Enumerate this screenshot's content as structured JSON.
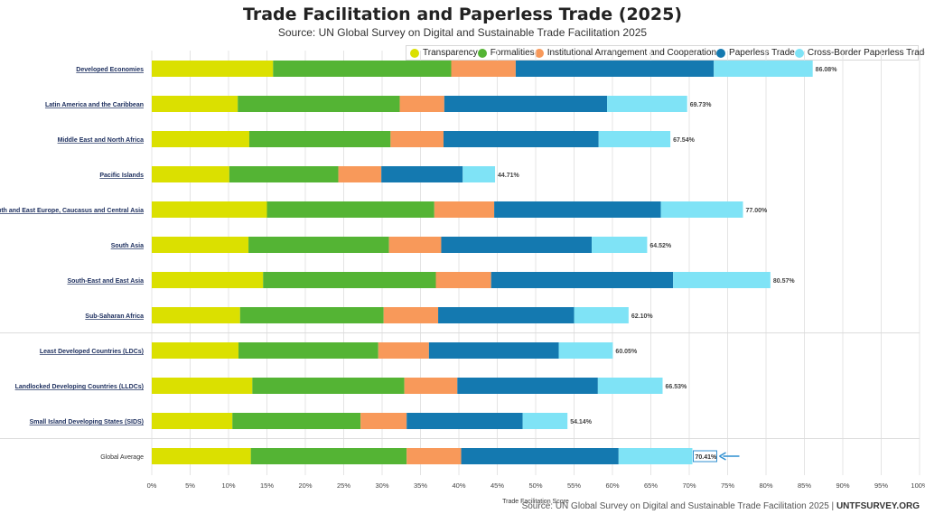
{
  "page": {
    "title": "Trade Facilitation and Paperless Trade (2025)",
    "subtitle": "Source: UN Global Survey on Digital and Sustainable Trade Facilitation 2025",
    "footer_source": "Source: UN Global Survey on Digital and Sustainable Trade Facilitation 2025 | ",
    "footer_site": "UNTFSURVEY.ORG"
  },
  "chart_data": {
    "type": "bar",
    "orientation": "horizontal",
    "stacked": true,
    "title": "Trade Facilitation and Paperless Trade (2025)",
    "subtitle": "Source: UN Global Survey on Digital and Sustainable Trade Facilitation 2025",
    "xlabel": "Trade Facilitation Score",
    "ylabel": "",
    "xlim": [
      0,
      100
    ],
    "x_ticks": [
      "0%",
      "5%",
      "10%",
      "15%",
      "20%",
      "25%",
      "30%",
      "35%",
      "40%",
      "45%",
      "50%",
      "55%",
      "60%",
      "65%",
      "70%",
      "75%",
      "80%",
      "85%",
      "90%",
      "95%",
      "100%"
    ],
    "grid": true,
    "legend_position": "top-right",
    "categories": [
      "Developed Economies",
      "Latin America and the Caribbean",
      "Middle East and North Africa",
      "Pacific Islands",
      "South and East Europe, Caucasus and Central Asia",
      "South Asia",
      "South-East and East Asia",
      "Sub-Saharan Africa",
      "Least Developed Countries (LDCs)",
      "Landlocked Developing Countries (LLDCs)",
      "Small Island Developing States (SIDS)",
      "Global Average"
    ],
    "highlighted_category": "Global Average",
    "series": [
      {
        "name": "Transparency",
        "color": "#dbe000",
        "values": [
          15.8,
          11.2,
          12.7,
          10.1,
          15.0,
          12.6,
          14.5,
          11.5,
          11.3,
          13.1,
          10.5,
          12.9
        ]
      },
      {
        "name": "Formalities",
        "color": "#54b434",
        "values": [
          23.2,
          21.1,
          18.4,
          14.2,
          21.8,
          18.3,
          22.5,
          18.7,
          18.2,
          19.8,
          16.7,
          20.3
        ]
      },
      {
        "name": "Institutional Arrangement and Cooperation",
        "color": "#f8995a",
        "values": [
          8.4,
          5.8,
          6.9,
          5.6,
          7.8,
          6.8,
          7.2,
          7.1,
          6.6,
          6.9,
          6.0,
          7.1
        ]
      },
      {
        "name": "Paperless Trade",
        "color": "#1479b0",
        "values": [
          25.8,
          21.2,
          20.2,
          10.6,
          21.7,
          19.6,
          23.7,
          17.7,
          16.9,
          18.3,
          15.1,
          20.5
        ]
      },
      {
        "name": "Cross-Border Paperless Trade",
        "color": "#7fe3f6",
        "values": [
          12.88,
          10.43,
          9.34,
          4.21,
          10.7,
          7.22,
          12.67,
          7.1,
          7.05,
          8.43,
          5.84,
          9.61
        ]
      }
    ],
    "totals": [
      86.08,
      69.73,
      67.54,
      44.71,
      77.0,
      64.52,
      80.57,
      62.1,
      60.05,
      66.53,
      54.14,
      70.41
    ],
    "total_labels": [
      "86.08%",
      "69.73%",
      "67.54%",
      "44.71%",
      "77.00%",
      "64.52%",
      "80.57%",
      "62.10%",
      "60.05%",
      "66.53%",
      "54.14%",
      "70.41%"
    ],
    "colors": {
      "grid": "#e4e4e4",
      "category_label": "#1a2c5c",
      "arrow": "#2f8fd0"
    }
  }
}
